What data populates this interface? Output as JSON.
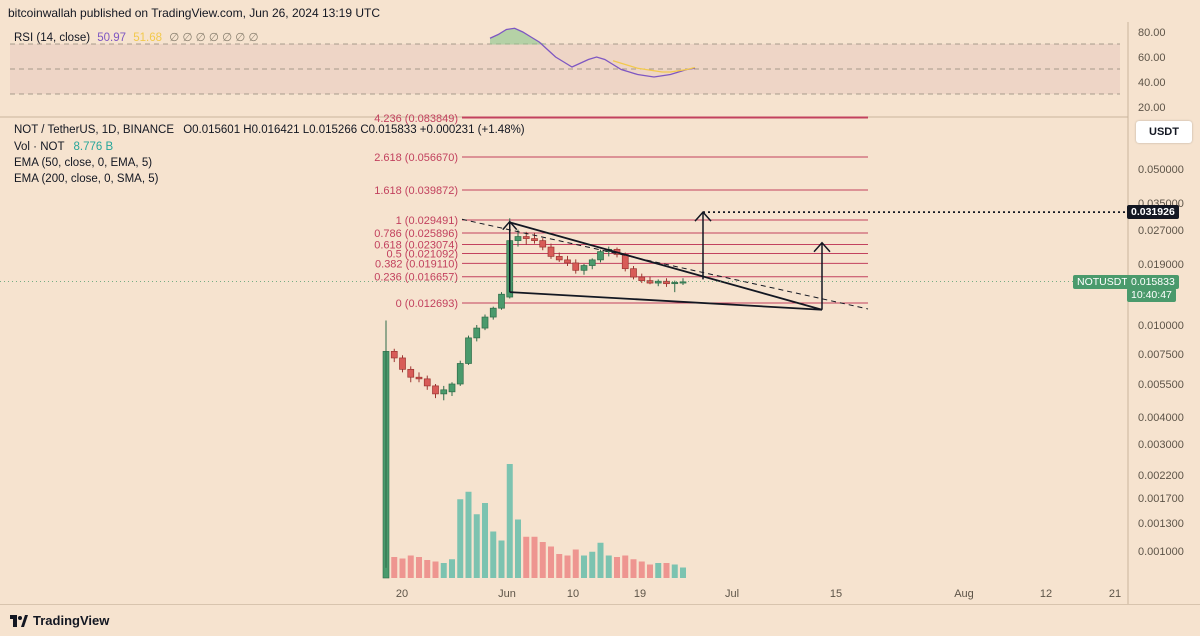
{
  "header": {
    "publisher": "bitcoinwallah published on TradingView.com, Jun 26, 2024 13:19 UTC"
  },
  "rsi": {
    "label": "RSI (14, close)",
    "value": "50.97",
    "ma_value": "51.68",
    "placeholders": "∅ ∅ ∅ ∅ ∅ ∅ ∅",
    "axis_ticks": [
      "80.00",
      "60.00",
      "40.00",
      "20.00"
    ]
  },
  "legend": {
    "symbol": "NOT / TetherUS, 1D, BINANCE",
    "ohlc": "O0.015601 H0.016421 L0.015266 C0.015833 +0.000231 (+1.48%)",
    "vol_label": "Vol · NOT",
    "vol_value": "8.776 B",
    "ema50": "EMA (50, close, 0, EMA, 5)",
    "ema200": "EMA (200, close, 0, SMA, 5)"
  },
  "currency_button": "USDT",
  "price_tags": {
    "target": "0.031926",
    "symbol": "NOTUSDT",
    "last": "0.015833",
    "countdown": "10:40:47"
  },
  "footer": {
    "brand": "TradingView"
  },
  "colors": {
    "background": "#f6e3cf",
    "up": "#4a9a6c",
    "down": "#d85c58",
    "fib": "#c2415e",
    "vol_up": "#7cc3b0",
    "vol_down": "#ee9590",
    "rsi_line": "#7e57c2",
    "rsi_ma": "#f2c94c"
  },
  "chart_data": {
    "type": "candlestick",
    "price_axis_ticks": [
      "0.050000",
      "0.035000",
      "0.027000",
      "0.019000",
      "0.010000",
      "0.007500",
      "0.005500",
      "0.004000",
      "0.003000",
      "0.002200",
      "0.001700",
      "0.001300",
      "0.001000"
    ],
    "time_axis_ticks": [
      "20",
      "Jun",
      "10",
      "19",
      "Jul",
      "15",
      "Aug",
      "12",
      "21"
    ],
    "fib_levels": [
      {
        "label": "4.236 (0.083849)",
        "price": 0.083849
      },
      {
        "label": "2.618 (0.056670)",
        "price": 0.05667
      },
      {
        "label": "1.618 (0.039872)",
        "price": 0.039872
      },
      {
        "label": "1 (0.029491)",
        "price": 0.029491
      },
      {
        "label": "0.786 (0.025896)",
        "price": 0.025896
      },
      {
        "label": "0.618 (0.023074)",
        "price": 0.023074
      },
      {
        "label": "0.5 (0.021092)",
        "price": 0.021092
      },
      {
        "label": "0.382 (0.019110)",
        "price": 0.01911
      },
      {
        "label": "0.236 (0.016657)",
        "price": 0.016657
      },
      {
        "label": "0 (0.012693)",
        "price": 0.012693
      }
    ],
    "candles": [
      {
        "o": 0.0008,
        "h": 0.0079,
        "l": 0.0008,
        "c": 0.0077
      },
      {
        "o": 0.0077,
        "h": 0.0079,
        "l": 0.0069,
        "c": 0.0072
      },
      {
        "o": 0.0072,
        "h": 0.0074,
        "l": 0.0062,
        "c": 0.0064
      },
      {
        "o": 0.0064,
        "h": 0.0066,
        "l": 0.0056,
        "c": 0.0059
      },
      {
        "o": 0.0059,
        "h": 0.0062,
        "l": 0.0056,
        "c": 0.0058
      },
      {
        "o": 0.0058,
        "h": 0.006,
        "l": 0.0052,
        "c": 0.0054
      },
      {
        "o": 0.0054,
        "h": 0.0055,
        "l": 0.0048,
        "c": 0.005
      },
      {
        "o": 0.005,
        "h": 0.0054,
        "l": 0.0047,
        "c": 0.0052
      },
      {
        "o": 0.0051,
        "h": 0.0056,
        "l": 0.0049,
        "c": 0.0055
      },
      {
        "o": 0.0055,
        "h": 0.007,
        "l": 0.0054,
        "c": 0.0068
      },
      {
        "o": 0.0068,
        "h": 0.009,
        "l": 0.0067,
        "c": 0.0088
      },
      {
        "o": 0.0088,
        "h": 0.01,
        "l": 0.0085,
        "c": 0.0097
      },
      {
        "o": 0.0097,
        "h": 0.0112,
        "l": 0.0095,
        "c": 0.0109
      },
      {
        "o": 0.0109,
        "h": 0.0122,
        "l": 0.0106,
        "c": 0.012
      },
      {
        "o": 0.012,
        "h": 0.0142,
        "l": 0.0118,
        "c": 0.0139
      },
      {
        "o": 0.0135,
        "h": 0.03,
        "l": 0.0133,
        "c": 0.024
      },
      {
        "o": 0.024,
        "h": 0.0268,
        "l": 0.0226,
        "c": 0.025
      },
      {
        "o": 0.025,
        "h": 0.0262,
        "l": 0.023,
        "c": 0.0245
      },
      {
        "o": 0.0245,
        "h": 0.026,
        "l": 0.0233,
        "c": 0.024
      },
      {
        "o": 0.024,
        "h": 0.0246,
        "l": 0.0218,
        "c": 0.0225
      },
      {
        "o": 0.0225,
        "h": 0.0233,
        "l": 0.02,
        "c": 0.0205
      },
      {
        "o": 0.0205,
        "h": 0.0213,
        "l": 0.0194,
        "c": 0.0198
      },
      {
        "o": 0.0198,
        "h": 0.0206,
        "l": 0.0186,
        "c": 0.0192
      },
      {
        "o": 0.0192,
        "h": 0.0199,
        "l": 0.0172,
        "c": 0.0178
      },
      {
        "o": 0.0178,
        "h": 0.019,
        "l": 0.017,
        "c": 0.0187
      },
      {
        "o": 0.0187,
        "h": 0.0201,
        "l": 0.018,
        "c": 0.0198
      },
      {
        "o": 0.0198,
        "h": 0.0219,
        "l": 0.0193,
        "c": 0.0215
      },
      {
        "o": 0.0215,
        "h": 0.0226,
        "l": 0.0205,
        "c": 0.022
      },
      {
        "o": 0.022,
        "h": 0.0224,
        "l": 0.0203,
        "c": 0.0209
      },
      {
        "o": 0.0209,
        "h": 0.0213,
        "l": 0.0176,
        "c": 0.0181
      },
      {
        "o": 0.0181,
        "h": 0.0186,
        "l": 0.0162,
        "c": 0.0166
      },
      {
        "o": 0.0166,
        "h": 0.0172,
        "l": 0.0156,
        "c": 0.016
      },
      {
        "o": 0.016,
        "h": 0.0167,
        "l": 0.0154,
        "c": 0.0156
      },
      {
        "o": 0.0156,
        "h": 0.0162,
        "l": 0.0151,
        "c": 0.0159
      },
      {
        "o": 0.0159,
        "h": 0.0164,
        "l": 0.015,
        "c": 0.0155
      },
      {
        "o": 0.0155,
        "h": 0.016,
        "l": 0.0142,
        "c": 0.0157
      },
      {
        "o": 0.0156,
        "h": 0.0164,
        "l": 0.0153,
        "c": 0.0158
      }
    ],
    "volume": [
      0.0,
      0.28,
      0.26,
      0.3,
      0.28,
      0.24,
      0.22,
      0.2,
      0.25,
      1.05,
      1.15,
      0.85,
      1.0,
      0.62,
      0.5,
      1.52,
      0.78,
      0.55,
      0.55,
      0.48,
      0.42,
      0.32,
      0.3,
      0.38,
      0.3,
      0.35,
      0.47,
      0.3,
      0.28,
      0.3,
      0.25,
      0.22,
      0.18,
      0.2,
      0.2,
      0.18,
      0.14
    ],
    "volume_first_bar": 1.0,
    "rsi_values": [
      75,
      78,
      82,
      83,
      80,
      76,
      72,
      66,
      60,
      56,
      52,
      55,
      58,
      60,
      58,
      54,
      50,
      48,
      46,
      45,
      44,
      45,
      46,
      48,
      50,
      51
    ],
    "rsi_ma_values": [
      null,
      null,
      null,
      null,
      null,
      null,
      null,
      null,
      null,
      null,
      null,
      null,
      null,
      null,
      null,
      57,
      55,
      53,
      51,
      50,
      49,
      48,
      48,
      49,
      50,
      51.68
    ],
    "projection_target": 0.031926,
    "apex_price": 0.0118
  }
}
